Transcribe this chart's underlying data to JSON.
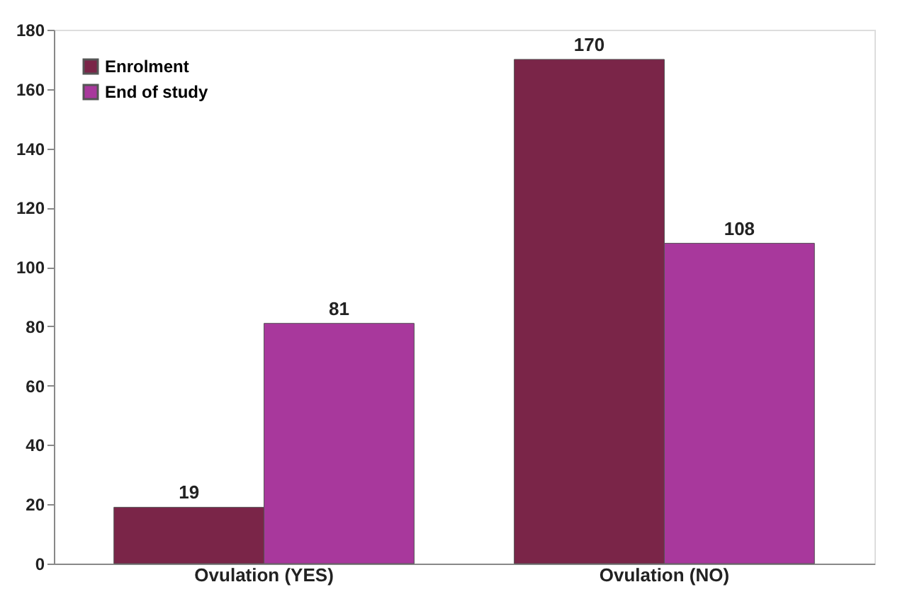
{
  "chart_data": {
    "type": "bar",
    "categories": [
      "Ovulation (YES)",
      "Ovulation (NO)"
    ],
    "series": [
      {
        "name": "Enrolment",
        "color": "#7a2548",
        "values": [
          19,
          170
        ]
      },
      {
        "name": "End of study",
        "color": "#a8389c",
        "values": [
          81,
          108
        ]
      }
    ],
    "ylim": [
      0,
      180
    ],
    "yticks": [
      0,
      20,
      40,
      60,
      80,
      100,
      120,
      140,
      160,
      180
    ],
    "grid": false,
    "legend": "top left",
    "data_labels": true
  }
}
